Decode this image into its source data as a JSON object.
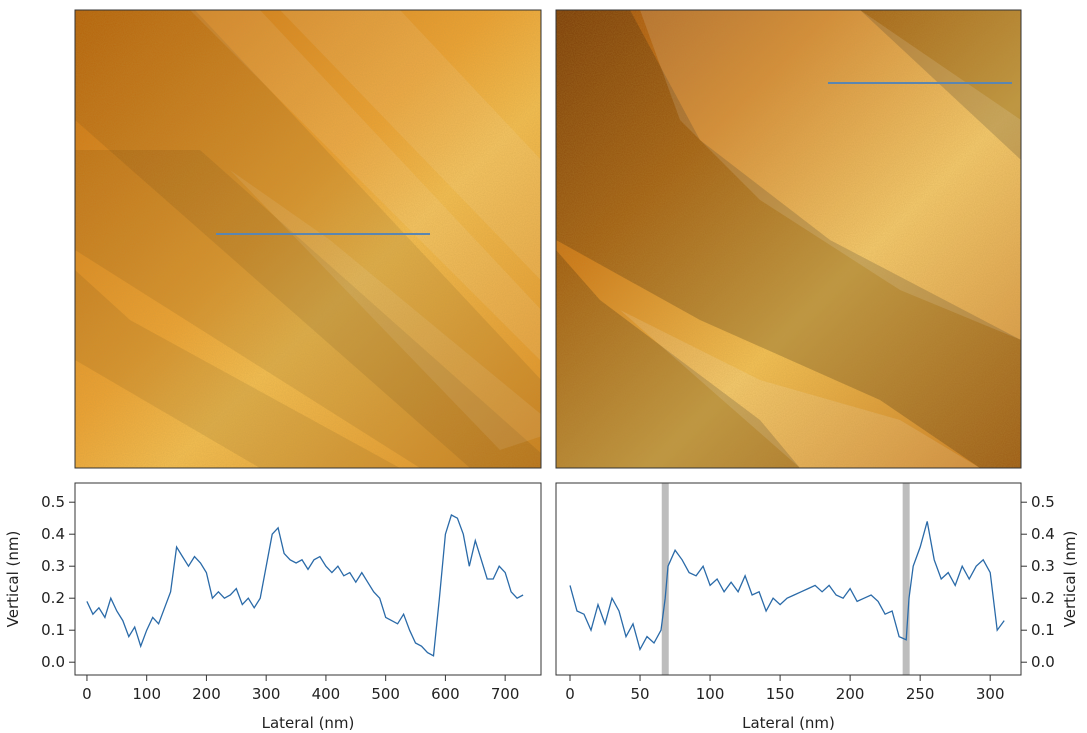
{
  "chart_data": [
    {
      "type": "line",
      "panel": "bottom-left",
      "xlabel": "Lateral (nm)",
      "ylabel": "Vertical (nm)",
      "xlim": [
        -20,
        760
      ],
      "ylim": [
        -0.04,
        0.56
      ],
      "xticks": [
        0,
        100,
        200,
        300,
        400,
        500,
        600,
        700
      ],
      "yticks": [
        0.0,
        0.1,
        0.2,
        0.3,
        0.4,
        0.5
      ],
      "line_color": "#2a6aa8",
      "grid": false,
      "x": [
        0,
        10,
        20,
        30,
        40,
        50,
        60,
        70,
        80,
        90,
        100,
        110,
        120,
        130,
        140,
        150,
        160,
        170,
        180,
        190,
        200,
        210,
        220,
        230,
        240,
        250,
        260,
        270,
        280,
        290,
        300,
        310,
        320,
        330,
        340,
        350,
        360,
        370,
        380,
        390,
        400,
        410,
        420,
        430,
        440,
        450,
        460,
        470,
        480,
        490,
        500,
        510,
        520,
        530,
        540,
        550,
        560,
        570,
        580,
        590,
        600,
        610,
        620,
        630,
        640,
        650,
        660,
        670,
        680,
        690,
        700,
        710,
        720,
        730
      ],
      "y": [
        0.19,
        0.15,
        0.17,
        0.14,
        0.2,
        0.16,
        0.13,
        0.08,
        0.11,
        0.05,
        0.1,
        0.14,
        0.12,
        0.17,
        0.22,
        0.36,
        0.33,
        0.3,
        0.33,
        0.31,
        0.28,
        0.2,
        0.22,
        0.2,
        0.21,
        0.23,
        0.18,
        0.2,
        0.17,
        0.2,
        0.3,
        0.4,
        0.42,
        0.34,
        0.32,
        0.31,
        0.32,
        0.29,
        0.32,
        0.33,
        0.3,
        0.28,
        0.3,
        0.27,
        0.28,
        0.25,
        0.28,
        0.25,
        0.22,
        0.2,
        0.14,
        0.13,
        0.12,
        0.15,
        0.1,
        0.06,
        0.05,
        0.03,
        0.02,
        0.2,
        0.4,
        0.46,
        0.45,
        0.4,
        0.3,
        0.38,
        0.32,
        0.26,
        0.26,
        0.3,
        0.28,
        0.22,
        0.2,
        0.21
      ]
    },
    {
      "type": "line",
      "panel": "bottom-right",
      "xlabel": "Lateral (nm)",
      "ylabel": "Vertical (nm)",
      "xlim": [
        -10,
        322
      ],
      "ylim": [
        -0.04,
        0.56
      ],
      "xticks": [
        0,
        50,
        100,
        150,
        200,
        250,
        300
      ],
      "yticks": [
        0.0,
        0.1,
        0.2,
        0.3,
        0.4,
        0.5
      ],
      "line_color": "#2a6aa8",
      "grid": false,
      "shaded_x": [
        68,
        240
      ],
      "shade_color": "#bdbdbd",
      "x": [
        0,
        5,
        10,
        15,
        20,
        25,
        30,
        35,
        40,
        45,
        50,
        55,
        60,
        65,
        68,
        70,
        75,
        80,
        85,
        90,
        95,
        100,
        105,
        110,
        115,
        120,
        125,
        130,
        135,
        140,
        145,
        150,
        155,
        160,
        165,
        170,
        175,
        180,
        185,
        190,
        195,
        200,
        205,
        210,
        215,
        220,
        225,
        230,
        235,
        240,
        242,
        245,
        250,
        255,
        260,
        265,
        270,
        275,
        280,
        285,
        290,
        295,
        300,
        305,
        310
      ],
      "y": [
        0.24,
        0.16,
        0.15,
        0.1,
        0.18,
        0.12,
        0.2,
        0.16,
        0.08,
        0.12,
        0.04,
        0.08,
        0.06,
        0.1,
        0.2,
        0.3,
        0.35,
        0.32,
        0.28,
        0.27,
        0.3,
        0.24,
        0.26,
        0.22,
        0.25,
        0.22,
        0.27,
        0.21,
        0.22,
        0.16,
        0.2,
        0.18,
        0.2,
        0.21,
        0.22,
        0.23,
        0.24,
        0.22,
        0.24,
        0.21,
        0.2,
        0.23,
        0.19,
        0.2,
        0.21,
        0.19,
        0.15,
        0.16,
        0.08,
        0.07,
        0.2,
        0.3,
        0.36,
        0.44,
        0.32,
        0.26,
        0.28,
        0.24,
        0.3,
        0.26,
        0.3,
        0.32,
        0.28,
        0.1,
        0.13
      ]
    }
  ]
}
